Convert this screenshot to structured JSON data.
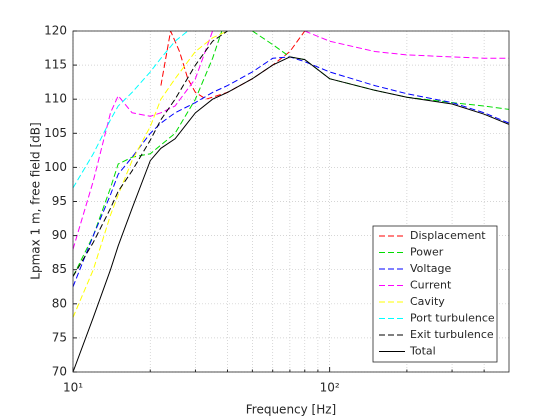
{
  "chart_data": {
    "type": "line",
    "xlabel": "Frequency [Hz]",
    "ylabel": "Lpmax 1 m, free field [dB]",
    "xscale": "log",
    "xlim": [
      10,
      500
    ],
    "ylim": [
      70,
      120
    ],
    "xticks": [
      {
        "value": 10,
        "label": "10¹"
      },
      {
        "value": 100,
        "label": "10²"
      }
    ],
    "xminor": [
      20,
      30,
      40,
      50,
      60,
      70,
      80,
      90,
      200,
      300,
      400
    ],
    "yticks": [
      70,
      75,
      80,
      85,
      90,
      95,
      100,
      105,
      110,
      115,
      120
    ],
    "grid": true,
    "legend_loc": "southeast",
    "series": [
      {
        "name": "Displacement",
        "color": "#ff0000",
        "linestyle": "--",
        "x": [
          22,
          24,
          26,
          28,
          30,
          33,
          40,
          50,
          60,
          70,
          80
        ],
        "values": [
          112,
          120,
          117,
          113,
          111,
          110,
          111,
          113,
          115,
          117,
          120
        ]
      },
      {
        "name": "Power",
        "color": "#00dd00",
        "linestyle": "--",
        "x": [
          10,
          12,
          14,
          15,
          17,
          20,
          25,
          30,
          35,
          38,
          45,
          50,
          60,
          70,
          80,
          100,
          150,
          200,
          300,
          400,
          500
        ],
        "values": [
          84,
          90,
          97,
          100.5,
          101.5,
          102,
          105,
          110,
          116,
          120,
          null,
          120,
          118,
          116.2,
          115.8,
          113,
          111.3,
          110.3,
          109.5,
          109,
          108.5
        ]
      },
      {
        "name": "Voltage",
        "color": "#0000ff",
        "linestyle": "--",
        "x": [
          10,
          12,
          14,
          15,
          17,
          20,
          22,
          25,
          30,
          35,
          40,
          50,
          60,
          70,
          80,
          100,
          150,
          200,
          300,
          400,
          500
        ],
        "values": [
          82.5,
          90,
          96,
          99,
          101.5,
          105,
          106.5,
          108,
          109.5,
          111,
          112,
          114,
          116,
          116.2,
          115.5,
          114,
          112,
          110.8,
          109.5,
          108,
          106.5
        ]
      },
      {
        "name": "Current",
        "color": "#ff00ff",
        "linestyle": "--",
        "x": [
          10,
          12,
          14,
          15,
          17,
          20,
          22,
          25,
          30,
          35,
          50,
          80,
          100,
          150,
          200,
          300,
          400,
          500
        ],
        "values": [
          88,
          98,
          108,
          110.5,
          108,
          107.5,
          108,
          109,
          113,
          120,
          null,
          120,
          118.5,
          117,
          116.5,
          116.2,
          116,
          116
        ]
      },
      {
        "name": "Cavity",
        "color": "#ffff00",
        "linestyle": "--",
        "x": [
          10,
          12,
          14,
          15,
          17,
          20,
          22,
          25,
          30,
          35,
          40
        ],
        "values": [
          78,
          85,
          93,
          96,
          101,
          106,
          110,
          113,
          117,
          119,
          120
        ]
      },
      {
        "name": "Port turbulence",
        "color": "#00ffff",
        "linestyle": "--",
        "x": [
          10,
          12,
          14,
          15,
          17,
          20,
          22,
          25,
          28
        ],
        "values": [
          97,
          102,
          107,
          109,
          111,
          114,
          116,
          118.5,
          120
        ]
      },
      {
        "name": "Exit turbulence",
        "color": "#000000",
        "linestyle": "--",
        "x": [
          10,
          12,
          14,
          15,
          17,
          20,
          22,
          25,
          30,
          35,
          40
        ],
        "values": [
          84,
          89,
          94,
          96.5,
          99.5,
          104,
          107,
          110,
          115,
          118.5,
          120
        ]
      },
      {
        "name": "Total",
        "color": "#000000",
        "linestyle": "-",
        "x": [
          10,
          12,
          14,
          15,
          17,
          20,
          22,
          25,
          30,
          35,
          40,
          50,
          60,
          70,
          80,
          100,
          150,
          200,
          300,
          400,
          500
        ],
        "values": [
          70,
          78,
          85,
          88.5,
          94,
          101,
          102.8,
          104.2,
          108,
          110,
          111,
          113,
          115,
          116.2,
          115.8,
          113,
          111.3,
          110.3,
          109.3,
          107.8,
          106.3
        ]
      }
    ]
  }
}
